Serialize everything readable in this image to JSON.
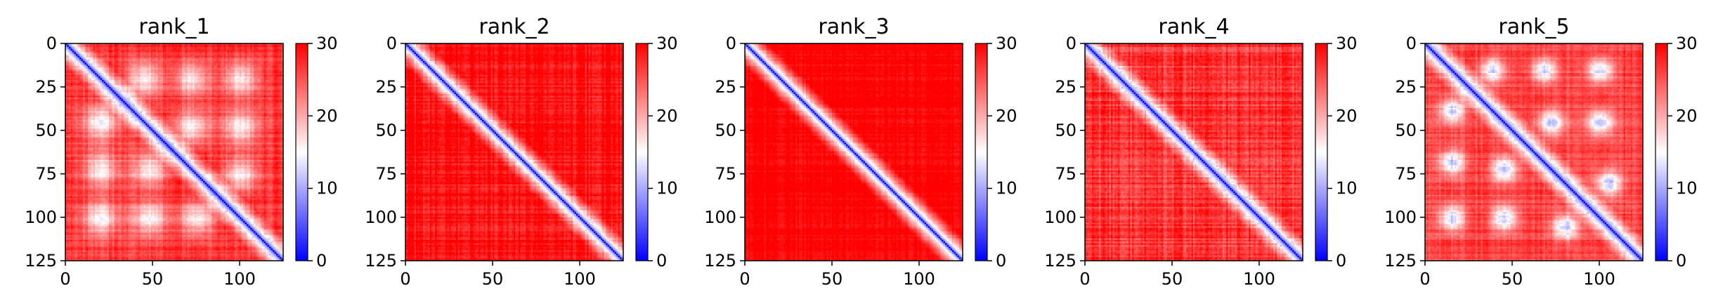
{
  "figure": {
    "colormap": {
      "low": "#0000ff",
      "mid": "#ffffff",
      "high": "#ff0000"
    },
    "matrix_size": 125
  },
  "chart_data": [
    {
      "type": "heatmap",
      "title": "rank_1",
      "xlim": [
        0,
        125
      ],
      "ylim": [
        125,
        0
      ],
      "x_ticks": [
        "0",
        "50",
        "100"
      ],
      "y_ticks": [
        "0",
        "25",
        "50",
        "75",
        "100",
        "125"
      ],
      "colorbar": {
        "vmin": 0,
        "vmax": 30,
        "ticks": [
          "0",
          "10",
          "20",
          "30"
        ]
      },
      "pattern": {
        "diag_width": 4.5,
        "background": 27,
        "noise": 3,
        "blobs": [
          [
            20,
            45,
            7,
            11
          ],
          [
            20,
            72,
            7,
            11
          ],
          [
            20,
            100,
            7,
            11
          ],
          [
            48,
            72,
            7,
            11
          ],
          [
            48,
            100,
            7,
            11
          ],
          [
            75,
            100,
            7,
            11
          ]
        ]
      }
    },
    {
      "type": "heatmap",
      "title": "rank_2",
      "xlim": [
        0,
        125
      ],
      "ylim": [
        125,
        0
      ],
      "x_ticks": [
        "0",
        "50",
        "100"
      ],
      "y_ticks": [
        "0",
        "25",
        "50",
        "75",
        "100",
        "125"
      ],
      "colorbar": {
        "vmin": 0,
        "vmax": 30,
        "ticks": [
          "0",
          "10",
          "20",
          "30"
        ]
      },
      "pattern": {
        "diag_width": 4.5,
        "background": 29,
        "noise": 3,
        "blobs": []
      }
    },
    {
      "type": "heatmap",
      "title": "rank_3",
      "xlim": [
        0,
        125
      ],
      "ylim": [
        125,
        0
      ],
      "x_ticks": [
        "0",
        "50",
        "100"
      ],
      "y_ticks": [
        "0",
        "25",
        "50",
        "75",
        "100",
        "125"
      ],
      "colorbar": {
        "vmin": 0,
        "vmax": 30,
        "ticks": [
          "0",
          "10",
          "20",
          "30"
        ]
      },
      "pattern": {
        "diag_width": 4.5,
        "background": 30,
        "noise": 2,
        "blobs": []
      }
    },
    {
      "type": "heatmap",
      "title": "rank_4",
      "xlim": [
        0,
        125
      ],
      "ylim": [
        125,
        0
      ],
      "x_ticks": [
        "0",
        "50",
        "100"
      ],
      "y_ticks": [
        "0",
        "25",
        "50",
        "75",
        "100",
        "125"
      ],
      "colorbar": {
        "vmin": 0,
        "vmax": 30,
        "ticks": [
          "0",
          "10",
          "20",
          "30"
        ]
      },
      "pattern": {
        "diag_width": 4.5,
        "background": 27,
        "noise": 4,
        "blobs": []
      }
    },
    {
      "type": "heatmap",
      "title": "rank_5",
      "xlim": [
        0,
        125
      ],
      "ylim": [
        125,
        0
      ],
      "x_ticks": [
        "0",
        "50",
        "100"
      ],
      "y_ticks": [
        "0",
        "25",
        "50",
        "75",
        "100",
        "125"
      ],
      "colorbar": {
        "vmin": 0,
        "vmax": 30,
        "ticks": [
          "0",
          "10",
          "20",
          "30"
        ]
      },
      "pattern": {
        "diag_width": 4.5,
        "background": 26,
        "noise": 3,
        "blobs": [
          [
            15,
            38,
            5,
            14
          ],
          [
            15,
            68,
            5,
            14
          ],
          [
            15,
            100,
            5,
            14
          ],
          [
            45,
            72,
            5,
            14
          ],
          [
            45,
            100,
            5,
            14
          ],
          [
            80,
            105,
            5,
            14
          ]
        ]
      }
    }
  ]
}
